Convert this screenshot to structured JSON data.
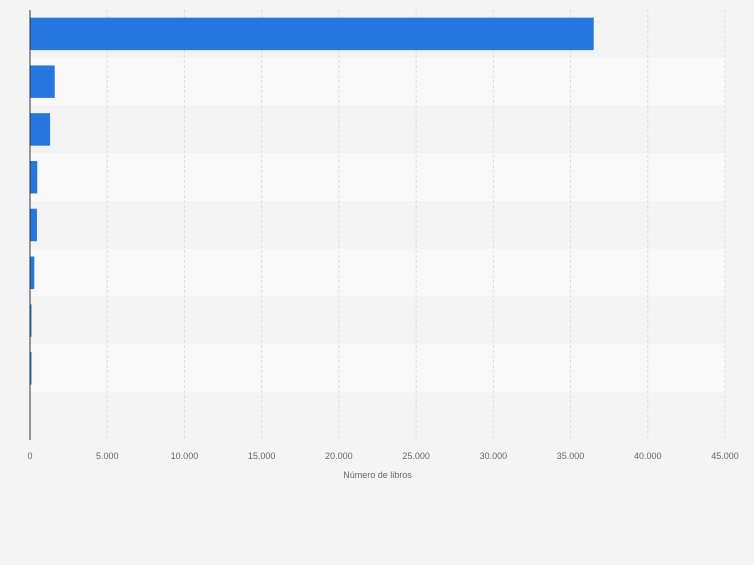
{
  "chart_data": {
    "type": "bar",
    "orientation": "horizontal",
    "categories": [
      "",
      "",
      "",
      "",
      "",
      "",
      "",
      "",
      ""
    ],
    "values": [
      36500,
      1600,
      1300,
      470,
      450,
      280,
      80,
      70,
      0
    ],
    "xlabel": "Número de libros",
    "ylabel": "",
    "xlim": [
      0,
      45000
    ],
    "ticks": [
      "0",
      "5.000",
      "10.000",
      "15.000",
      "20.000",
      "25.000",
      "30.000",
      "35.000",
      "40.000",
      "45.000"
    ],
    "grid": true,
    "colors": {
      "bar": "#2776dd",
      "band_light": "#f9f9f9",
      "band_dark": "#f3f3f3",
      "gridline": "#dcdcdc",
      "axis_line": "#333333",
      "tick_text": "#666666",
      "background": "#f4f4f4"
    }
  }
}
